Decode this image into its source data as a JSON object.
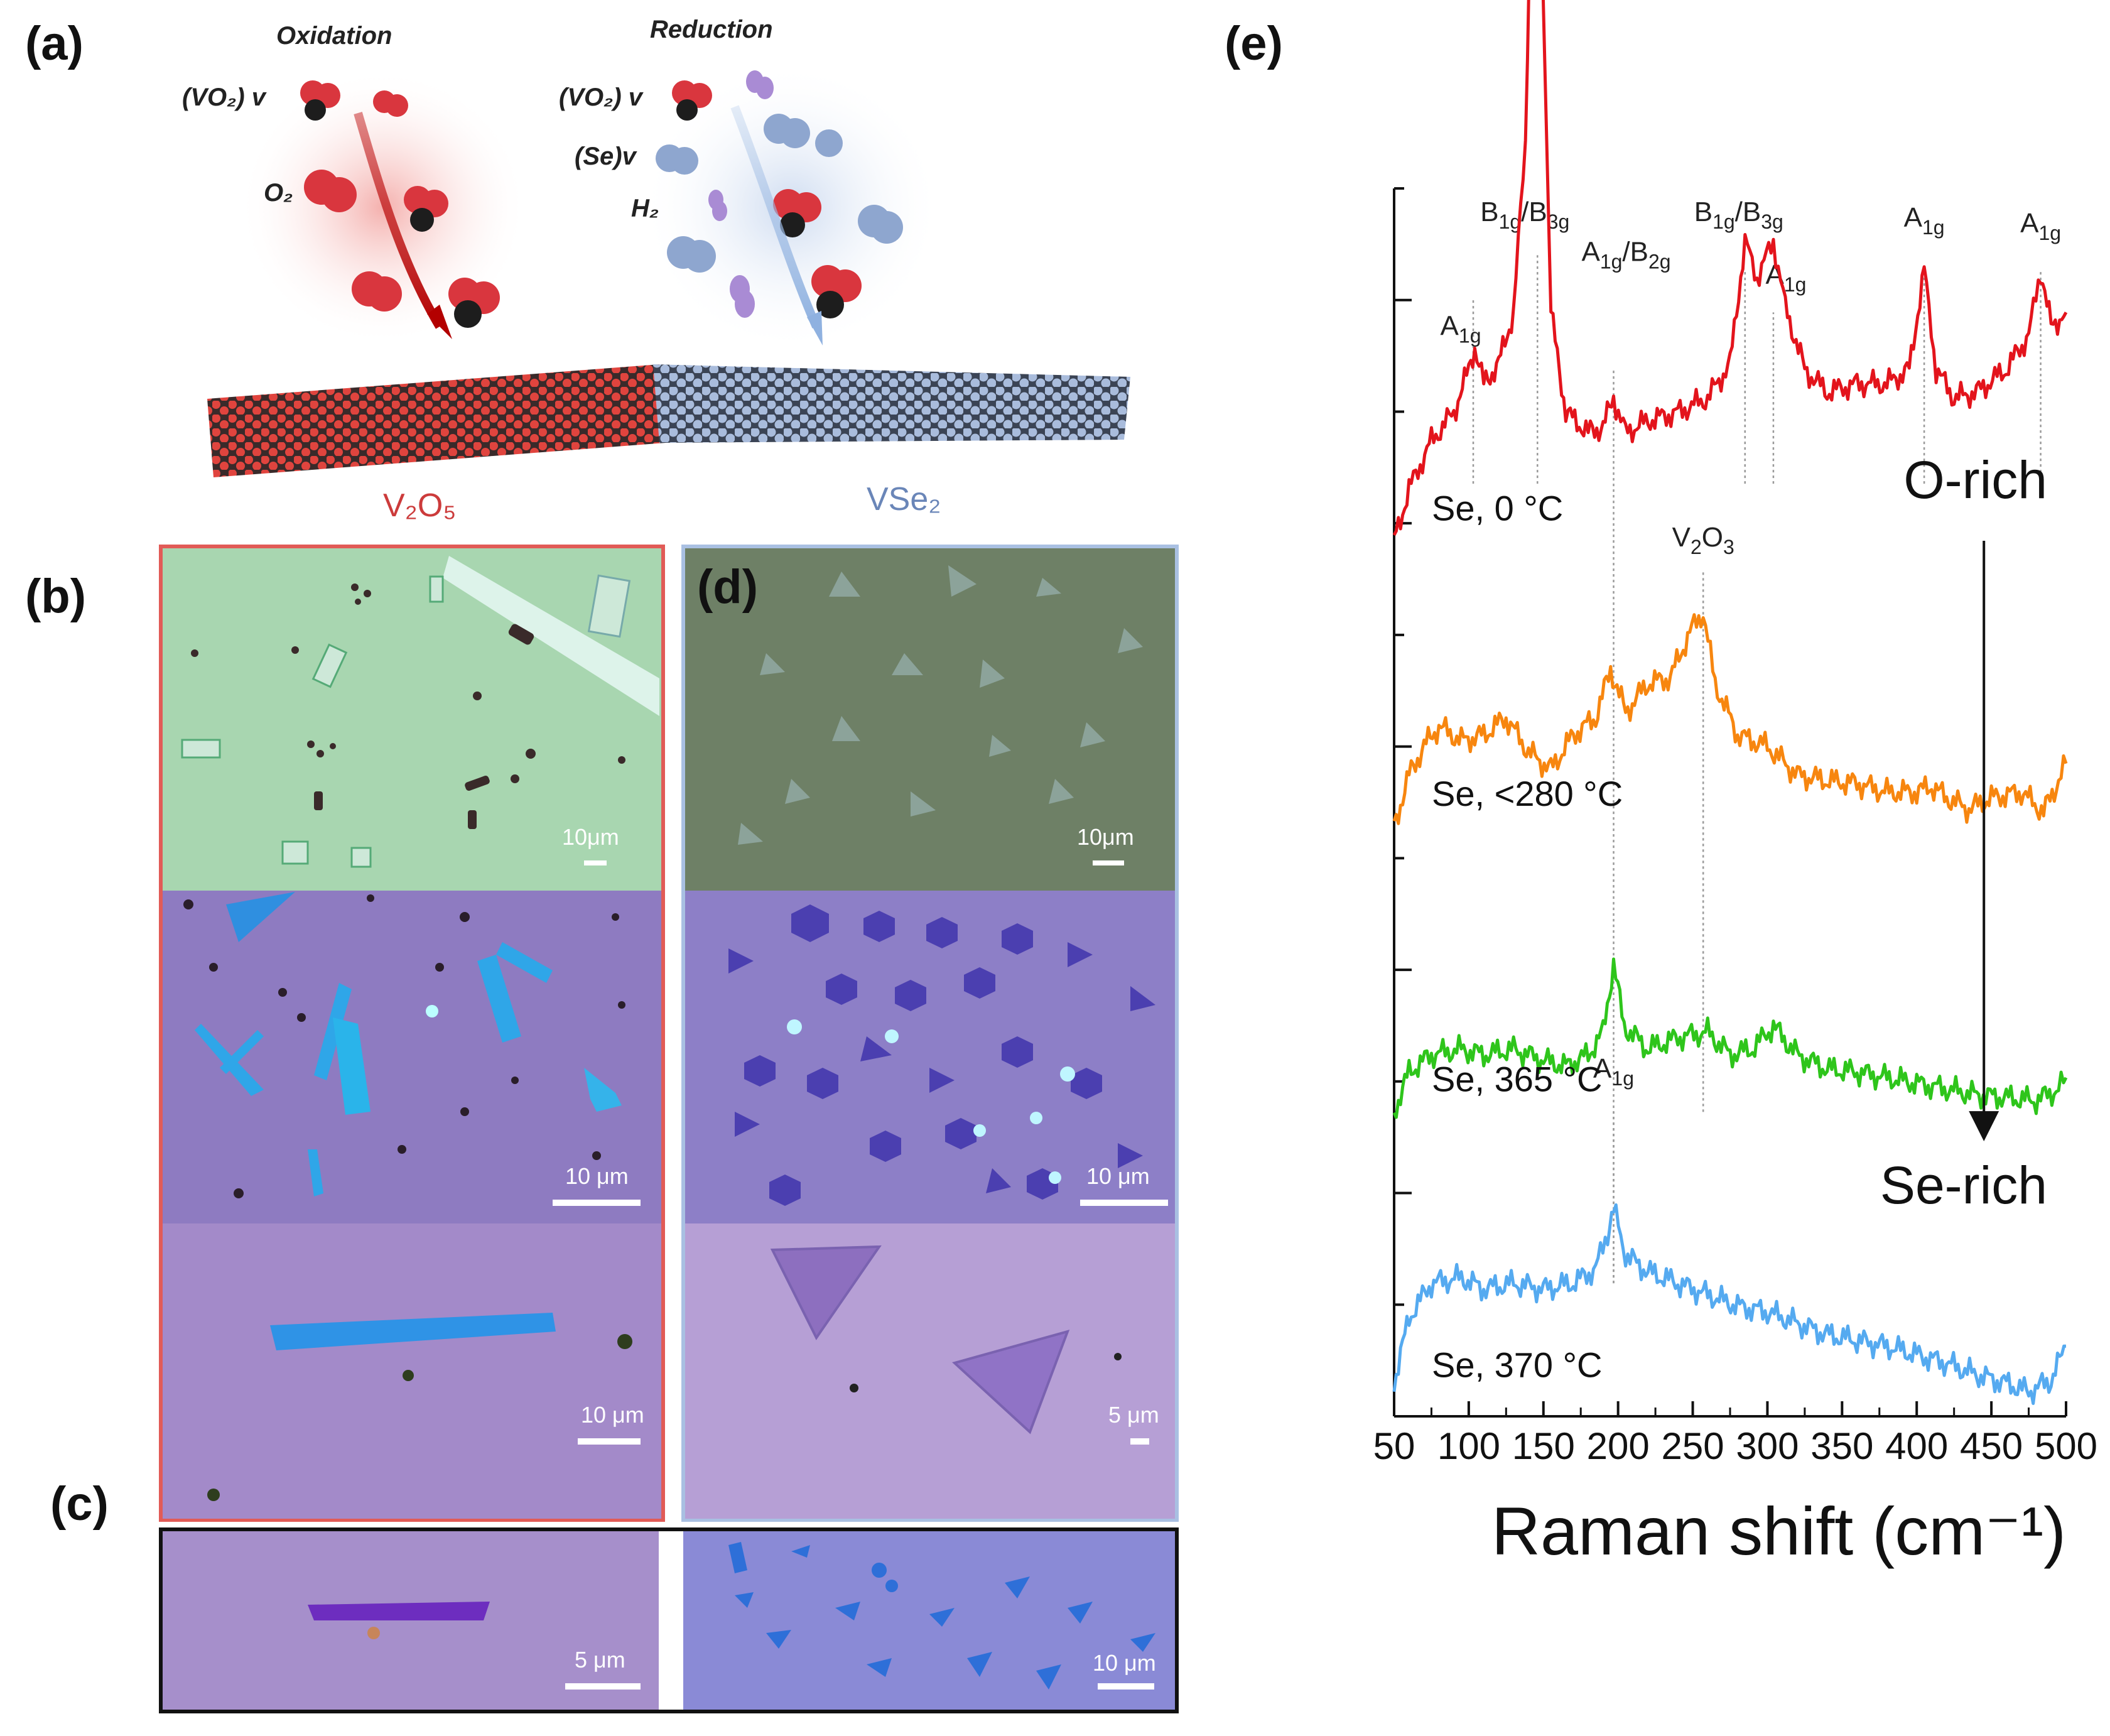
{
  "panel_labels": {
    "a": "(a)",
    "b": "(b)",
    "c": "(c)",
    "d": "(d)",
    "e": "(e)"
  },
  "schematic": {
    "oxidation": {
      "title": "Oxidation",
      "vacancy": "(VO₂) v",
      "gas": "O₂"
    },
    "reduction": {
      "title": "Reduction",
      "vacancy_vo2": "(VO₂) v",
      "vacancy_se": "(Se)v",
      "gas": "H₂"
    },
    "material_left": "V₂O₅",
    "material_right": "VSe₂",
    "colors": {
      "oxide": "#d9363e",
      "selenide": "#8ea6cf",
      "vanadium": "#222222",
      "hydrogen": "#a98bd4"
    }
  },
  "micrographs": {
    "b": [
      {
        "scale": "10μm"
      },
      {
        "scale": "10 μm"
      },
      {
        "scale": "10 μm"
      }
    ],
    "d": [
      {
        "scale": "10μm"
      },
      {
        "scale": "10 μm"
      },
      {
        "scale": "5 μm"
      }
    ],
    "c": [
      {
        "scale": "5 μm"
      },
      {
        "scale": "10 μm"
      }
    ]
  },
  "chart_data": {
    "type": "line",
    "title": "",
    "xlabel": "Raman shift (cm⁻¹)",
    "ylabel": "",
    "xlim": [
      50,
      500
    ],
    "x_ticks": [
      50,
      100,
      150,
      200,
      250,
      300,
      350,
      400,
      450,
      500
    ],
    "y_ticks_count": 11,
    "annotations": {
      "top": "O-rich",
      "bottom": "Se-rich"
    },
    "peak_lines": [
      {
        "x": 103,
        "label": "A",
        "sub": "1g"
      },
      {
        "x": 146,
        "label": "B",
        "sub": "1g",
        "label2": "/B",
        "sub2": "3g"
      },
      {
        "x": 197,
        "label": "A",
        "sub": "1g",
        "label2": "/B",
        "sub2": "2g"
      },
      {
        "x": 285,
        "label": "B",
        "sub": "1g",
        "label2": "/B",
        "sub2": "3g"
      },
      {
        "x": 304,
        "label": "A",
        "sub": "1g"
      },
      {
        "x": 405,
        "label": "A",
        "sub": "1g"
      },
      {
        "x": 483,
        "label": "A",
        "sub": "1g"
      },
      {
        "x": 257,
        "label": "V",
        "sub": "2",
        "label2": "O",
        "sub2": "3"
      },
      {
        "x": 197,
        "label": "A",
        "sub": "1g"
      }
    ],
    "series": [
      {
        "name": "Se, 0 °C",
        "color": "#e3141c",
        "offset": 3.0,
        "points": [
          [
            50,
            0.0
          ],
          [
            60,
            0.18
          ],
          [
            75,
            0.35
          ],
          [
            90,
            0.45
          ],
          [
            100,
            0.6
          ],
          [
            104,
            0.68
          ],
          [
            110,
            0.55
          ],
          [
            120,
            0.62
          ],
          [
            130,
            0.8
          ],
          [
            138,
            1.4
          ],
          [
            142,
            2.4
          ],
          [
            146,
            2.65
          ],
          [
            150,
            1.9
          ],
          [
            155,
            0.8
          ],
          [
            165,
            0.45
          ],
          [
            180,
            0.38
          ],
          [
            190,
            0.4
          ],
          [
            197,
            0.5
          ],
          [
            205,
            0.38
          ],
          [
            220,
            0.42
          ],
          [
            240,
            0.45
          ],
          [
            260,
            0.5
          ],
          [
            275,
            0.62
          ],
          [
            285,
            1.05
          ],
          [
            293,
            0.92
          ],
          [
            304,
            1.05
          ],
          [
            312,
            0.82
          ],
          [
            325,
            0.6
          ],
          [
            340,
            0.52
          ],
          [
            360,
            0.55
          ],
          [
            380,
            0.55
          ],
          [
            395,
            0.6
          ],
          [
            405,
            0.95
          ],
          [
            413,
            0.6
          ],
          [
            425,
            0.5
          ],
          [
            440,
            0.52
          ],
          [
            460,
            0.6
          ],
          [
            475,
            0.72
          ],
          [
            483,
            0.95
          ],
          [
            490,
            0.75
          ],
          [
            500,
            0.8
          ]
        ]
      },
      {
        "name": "Se, <280 °C",
        "color": "#f7860f",
        "offset": 2.0,
        "points": [
          [
            50,
            0.0
          ],
          [
            60,
            0.18
          ],
          [
            70,
            0.28
          ],
          [
            80,
            0.35
          ],
          [
            95,
            0.3
          ],
          [
            110,
            0.32
          ],
          [
            125,
            0.38
          ],
          [
            140,
            0.26
          ],
          [
            155,
            0.2
          ],
          [
            170,
            0.32
          ],
          [
            185,
            0.38
          ],
          [
            195,
            0.55
          ],
          [
            205,
            0.4
          ],
          [
            220,
            0.5
          ],
          [
            235,
            0.52
          ],
          [
            248,
            0.68
          ],
          [
            257,
            0.75
          ],
          [
            265,
            0.5
          ],
          [
            280,
            0.32
          ],
          [
            300,
            0.28
          ],
          [
            320,
            0.18
          ],
          [
            340,
            0.16
          ],
          [
            360,
            0.15
          ],
          [
            380,
            0.12
          ],
          [
            400,
            0.12
          ],
          [
            410,
            0.14
          ],
          [
            420,
            0.1
          ],
          [
            435,
            0.06
          ],
          [
            450,
            0.1
          ],
          [
            470,
            0.12
          ],
          [
            485,
            0.05
          ],
          [
            495,
            0.16
          ],
          [
            500,
            0.22
          ]
        ]
      },
      {
        "name": "Se, 365 °C",
        "color": "#2ec51b",
        "offset": 1.0,
        "points": [
          [
            50,
            0.0
          ],
          [
            60,
            0.14
          ],
          [
            75,
            0.2
          ],
          [
            95,
            0.22
          ],
          [
            110,
            0.2
          ],
          [
            130,
            0.22
          ],
          [
            150,
            0.18
          ],
          [
            165,
            0.16
          ],
          [
            180,
            0.2
          ],
          [
            190,
            0.28
          ],
          [
            197,
            0.52
          ],
          [
            204,
            0.3
          ],
          [
            220,
            0.22
          ],
          [
            240,
            0.26
          ],
          [
            260,
            0.28
          ],
          [
            275,
            0.2
          ],
          [
            290,
            0.22
          ],
          [
            304,
            0.3
          ],
          [
            320,
            0.2
          ],
          [
            340,
            0.15
          ],
          [
            360,
            0.14
          ],
          [
            380,
            0.12
          ],
          [
            400,
            0.1
          ],
          [
            420,
            0.08
          ],
          [
            440,
            0.06
          ],
          [
            460,
            0.05
          ],
          [
            480,
            0.04
          ],
          [
            495,
            0.08
          ],
          [
            500,
            0.12
          ]
        ]
      },
      {
        "name": "Se, 370 °C",
        "color": "#55aaf0",
        "offset": 0.0,
        "points": [
          [
            50,
            0.05
          ],
          [
            60,
            0.28
          ],
          [
            75,
            0.4
          ],
          [
            95,
            0.42
          ],
          [
            110,
            0.38
          ],
          [
            130,
            0.4
          ],
          [
            150,
            0.38
          ],
          [
            170,
            0.4
          ],
          [
            185,
            0.45
          ],
          [
            193,
            0.58
          ],
          [
            197,
            0.66
          ],
          [
            205,
            0.5
          ],
          [
            220,
            0.44
          ],
          [
            240,
            0.4
          ],
          [
            260,
            0.36
          ],
          [
            280,
            0.32
          ],
          [
            300,
            0.3
          ],
          [
            320,
            0.26
          ],
          [
            340,
            0.22
          ],
          [
            360,
            0.2
          ],
          [
            380,
            0.18
          ],
          [
            400,
            0.15
          ],
          [
            420,
            0.12
          ],
          [
            440,
            0.08
          ],
          [
            460,
            0.05
          ],
          [
            475,
            0.02
          ],
          [
            490,
            0.06
          ],
          [
            500,
            0.18
          ]
        ]
      }
    ]
  }
}
